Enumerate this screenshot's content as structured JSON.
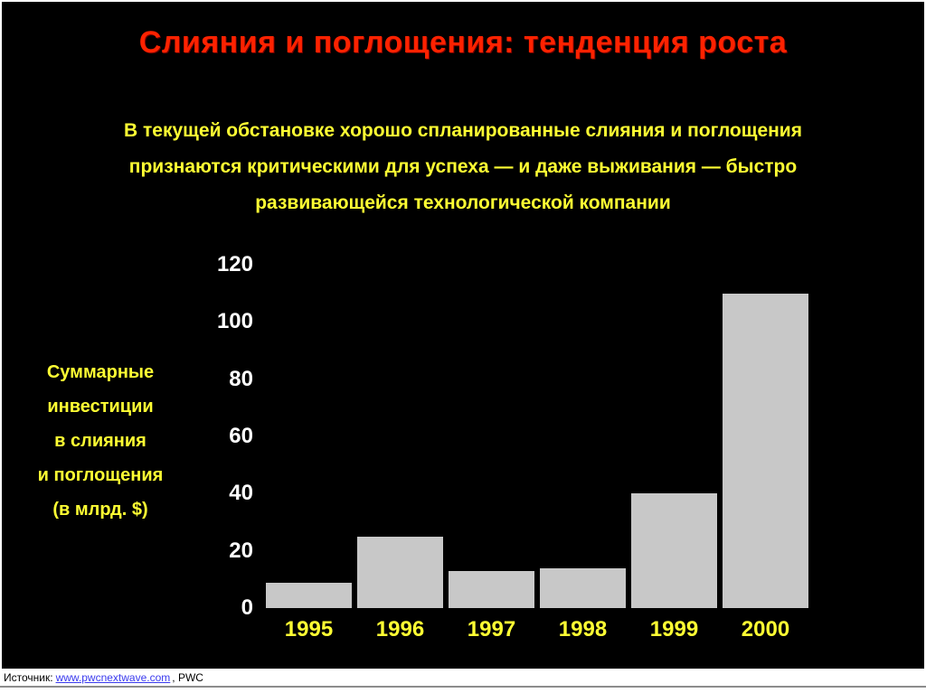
{
  "slide": {
    "title": "Слияния и поглощения: тенденция роста",
    "subtitle": "В текущей обстановке хорошо спланированные слияния и поглощения\nпризнаются критическими для успеха — и даже выживания — быстро\nразвивающейся технологической компании",
    "source": {
      "prefix": "Источник:",
      "link": "www.pwcnextwave.com",
      "suffix": ", PWC"
    }
  },
  "chart_data": {
    "type": "bar",
    "title": "Суммарные инвестиции в слияния и поглощения",
    "categories": [
      "1995",
      "1996",
      "1997",
      "1998",
      "1999",
      "2000"
    ],
    "values": [
      9,
      25,
      13,
      14,
      40,
      110
    ],
    "ylabel": "Суммарные\nинвестиции\nв слияния\nи поглощения\n(в млрд. $)",
    "xlabel": "",
    "yticks": [
      0,
      20,
      40,
      60,
      80,
      100,
      120
    ],
    "ylim": [
      0,
      120
    ],
    "grid": false,
    "legend": "none"
  },
  "colors": {
    "title": "#ff2200",
    "yellow": "#ffff33",
    "tick": "#ffffff",
    "bar": "#c8c8c8",
    "link": "#3a3aee",
    "background": "#000000"
  }
}
